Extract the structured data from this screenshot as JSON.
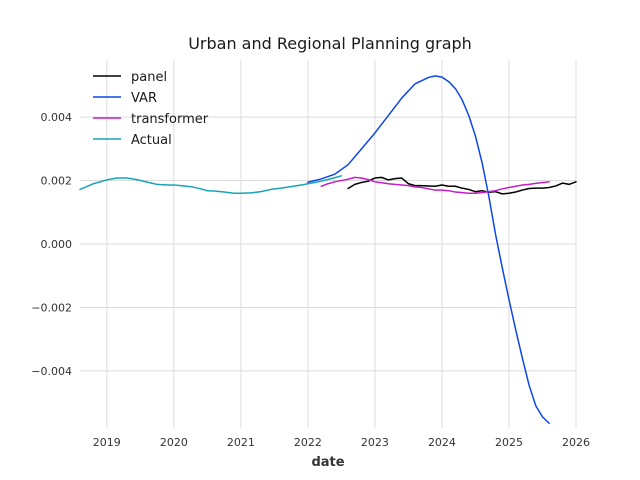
{
  "chart_data": {
    "type": "line",
    "title": "Urban and Regional Planning graph",
    "xlabel": "date",
    "ylabel": "",
    "xlim": [
      2018.6,
      2026.0
    ],
    "ylim": [
      -0.0058,
      0.0058
    ],
    "x_ticks": [
      {
        "value": 2019,
        "label": "2019"
      },
      {
        "value": 2020,
        "label": "2020"
      },
      {
        "value": 2021,
        "label": "2021"
      },
      {
        "value": 2022,
        "label": "2022"
      },
      {
        "value": 2023,
        "label": "2023"
      },
      {
        "value": 2024,
        "label": "2024"
      },
      {
        "value": 2025,
        "label": "2025"
      },
      {
        "value": 2026,
        "label": "2026"
      }
    ],
    "y_ticks": [
      {
        "value": 0.004,
        "label": "0.004"
      },
      {
        "value": 0.002,
        "label": "0.002"
      },
      {
        "value": 0.0,
        "label": "0.000"
      },
      {
        "value": -0.002,
        "label": "−0.002"
      },
      {
        "value": -0.004,
        "label": "−0.004"
      }
    ],
    "grid": true,
    "legend_position": "top-left",
    "series": [
      {
        "name": "panel",
        "color": "#000000",
        "x": [
          2022.6,
          2022.7,
          2022.8,
          2022.9,
          2023.0,
          2023.1,
          2023.2,
          2023.3,
          2023.4,
          2023.5,
          2023.6,
          2023.7,
          2023.8,
          2023.9,
          2024.0,
          2024.1,
          2024.2,
          2024.3,
          2024.4,
          2024.5,
          2024.6,
          2024.7,
          2024.8,
          2024.9,
          2025.0,
          2025.1,
          2025.2,
          2025.3,
          2025.4,
          2025.5,
          2025.6,
          2025.7,
          2025.8,
          2025.9,
          2026.0
        ],
        "y": [
          0.00175,
          0.00188,
          0.00194,
          0.00198,
          0.00208,
          0.0021,
          0.00202,
          0.00206,
          0.00208,
          0.0019,
          0.00184,
          0.00184,
          0.00183,
          0.00182,
          0.00186,
          0.00182,
          0.00182,
          0.00176,
          0.00172,
          0.00165,
          0.00168,
          0.00163,
          0.00165,
          0.00158,
          0.0016,
          0.00164,
          0.0017,
          0.00175,
          0.00176,
          0.00176,
          0.00178,
          0.00183,
          0.00192,
          0.00188,
          0.00196
        ]
      },
      {
        "name": "VAR",
        "color": "#0d47e8",
        "x": [
          2022.0,
          2022.2,
          2022.4,
          2022.6,
          2022.8,
          2023.0,
          2023.2,
          2023.4,
          2023.6,
          2023.8,
          2023.9,
          2024.0,
          2024.1,
          2024.2,
          2024.3,
          2024.4,
          2024.5,
          2024.6,
          2024.7,
          2024.8,
          2024.9,
          2025.0,
          2025.1,
          2025.2,
          2025.3,
          2025.4,
          2025.5,
          2025.6
        ],
        "y": [
          0.00195,
          0.00205,
          0.0022,
          0.0025,
          0.003,
          0.0035,
          0.00405,
          0.0046,
          0.00505,
          0.00525,
          0.0053,
          0.00526,
          0.00512,
          0.0049,
          0.00455,
          0.00405,
          0.0034,
          0.00255,
          0.0015,
          0.0003,
          -0.00075,
          -0.00175,
          -0.0027,
          -0.0036,
          -0.00445,
          -0.0051,
          -0.00545,
          -0.00565
        ]
      },
      {
        "name": "transformer",
        "color": "#c41fc6",
        "x": [
          2022.2,
          2022.3,
          2022.4,
          2022.5,
          2022.6,
          2022.7,
          2022.8,
          2022.9,
          2023.0,
          2023.1,
          2023.2,
          2023.3,
          2023.4,
          2023.5,
          2023.6,
          2023.7,
          2023.8,
          2023.9,
          2024.0,
          2024.1,
          2024.2,
          2024.3,
          2024.4,
          2024.5,
          2024.6,
          2024.7,
          2024.8,
          2024.9,
          2025.0,
          2025.1,
          2025.2,
          2025.3,
          2025.4,
          2025.5,
          2025.6
        ],
        "y": [
          0.00182,
          0.0019,
          0.00196,
          0.002,
          0.00204,
          0.0021,
          0.00208,
          0.00203,
          0.00196,
          0.00193,
          0.0019,
          0.00188,
          0.00186,
          0.00184,
          0.0018,
          0.00178,
          0.00174,
          0.0017,
          0.0017,
          0.00168,
          0.00164,
          0.00162,
          0.0016,
          0.0016,
          0.00162,
          0.00165,
          0.00168,
          0.00174,
          0.00178,
          0.00182,
          0.00186,
          0.00188,
          0.00191,
          0.00194,
          0.00196
        ]
      },
      {
        "name": "Actual",
        "color": "#17a3b8",
        "x": [
          2018.6,
          2018.8,
          2019.0,
          2019.15,
          2019.3,
          2019.45,
          2019.6,
          2019.75,
          2019.9,
          2020.0,
          2020.1,
          2020.25,
          2020.4,
          2020.5,
          2020.6,
          2020.75,
          2020.9,
          2021.0,
          2021.15,
          2021.3,
          2021.45,
          2021.6,
          2021.75,
          2021.9,
          2022.0,
          2022.1,
          2022.2,
          2022.35,
          2022.5
        ],
        "y": [
          0.00172,
          0.0019,
          0.00202,
          0.00208,
          0.00208,
          0.00203,
          0.00195,
          0.00188,
          0.00186,
          0.00186,
          0.00184,
          0.00181,
          0.00174,
          0.00168,
          0.00167,
          0.00164,
          0.0016,
          0.0016,
          0.00161,
          0.00165,
          0.00172,
          0.00176,
          0.00181,
          0.00186,
          0.0019,
          0.00194,
          0.00198,
          0.00206,
          0.00215
        ]
      }
    ]
  }
}
